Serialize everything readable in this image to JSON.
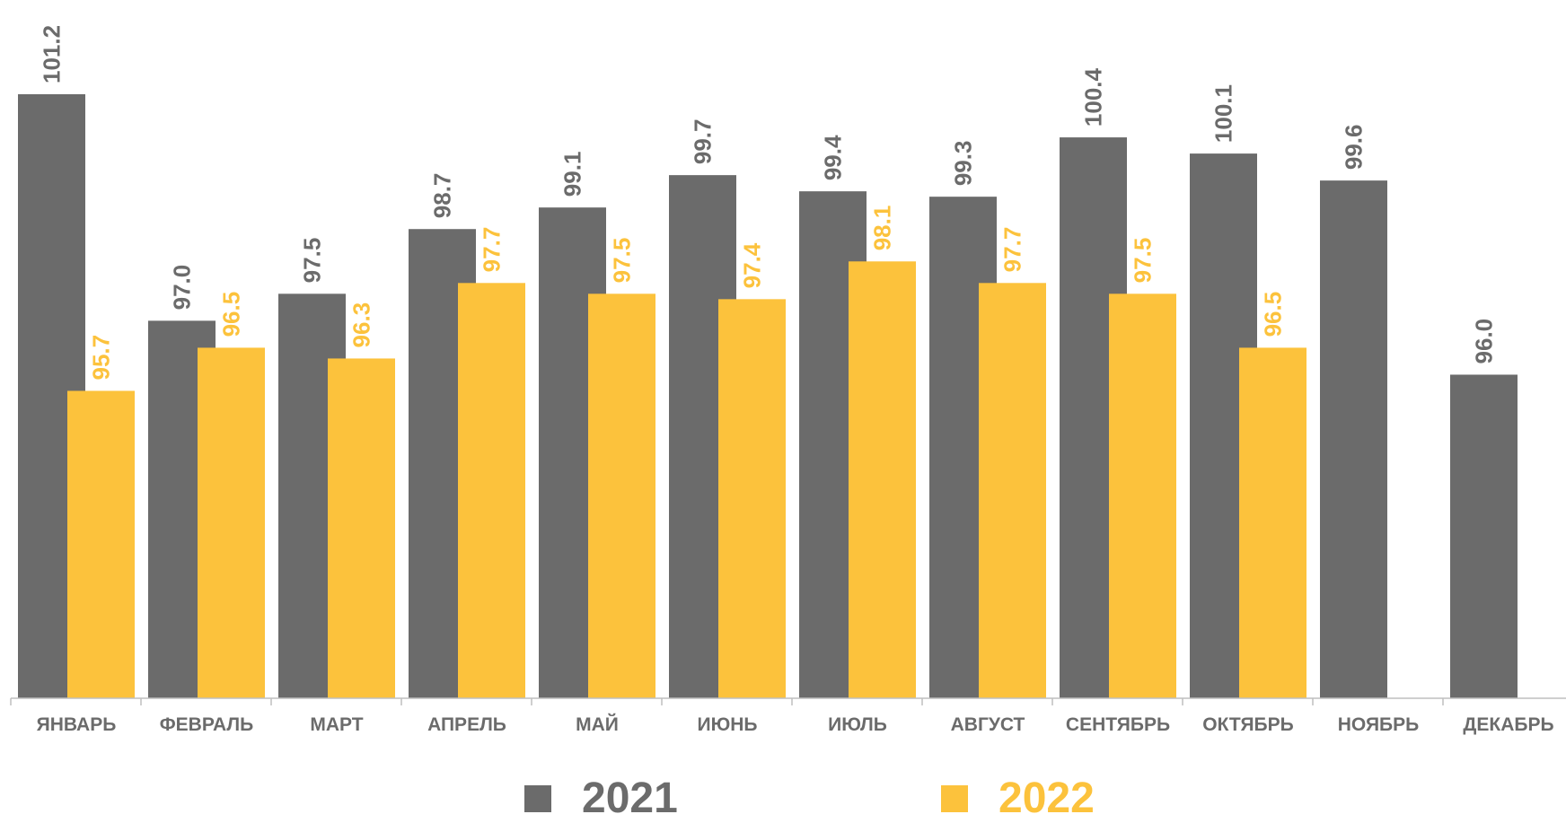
{
  "chart_data": {
    "type": "bar",
    "categories": [
      "ЯНВАРЬ",
      "ФЕВРАЛЬ",
      "МАРТ",
      "АПРЕЛЬ",
      "МАЙ",
      "ИЮНЬ",
      "ИЮЛЬ",
      "АВГУСТ",
      "СЕНТЯБРЬ",
      "ОКТЯБРЬ",
      "НОЯБРЬ",
      "ДЕКАБРЬ"
    ],
    "series": [
      {
        "name": "2021",
        "color": "#6b6b6b",
        "values": [
          101.2,
          97.0,
          97.5,
          98.7,
          99.1,
          99.7,
          99.4,
          99.3,
          100.4,
          100.1,
          99.6,
          96.0
        ],
        "labels": [
          "101.2",
          "97.0",
          "97.5",
          "98.7",
          "99.1",
          "99.7",
          "99.4",
          "99.3",
          "100.4",
          "100.1",
          "99.6",
          "96.0"
        ]
      },
      {
        "name": "2022",
        "color": "#fcc23c",
        "values": [
          95.7,
          96.5,
          96.3,
          97.7,
          97.5,
          97.4,
          98.1,
          97.7,
          97.5,
          96.5,
          null,
          null
        ],
        "labels": [
          "95.7",
          "96.5",
          "96.3",
          "97.7",
          "97.5",
          "97.4",
          "98.1",
          "97.7",
          "97.5",
          "96.5",
          null,
          null
        ]
      }
    ],
    "ylim": [
      90.0,
      101.2
    ],
    "grid": false,
    "legend": "bottom",
    "data_labels": "rotated-vertical"
  }
}
